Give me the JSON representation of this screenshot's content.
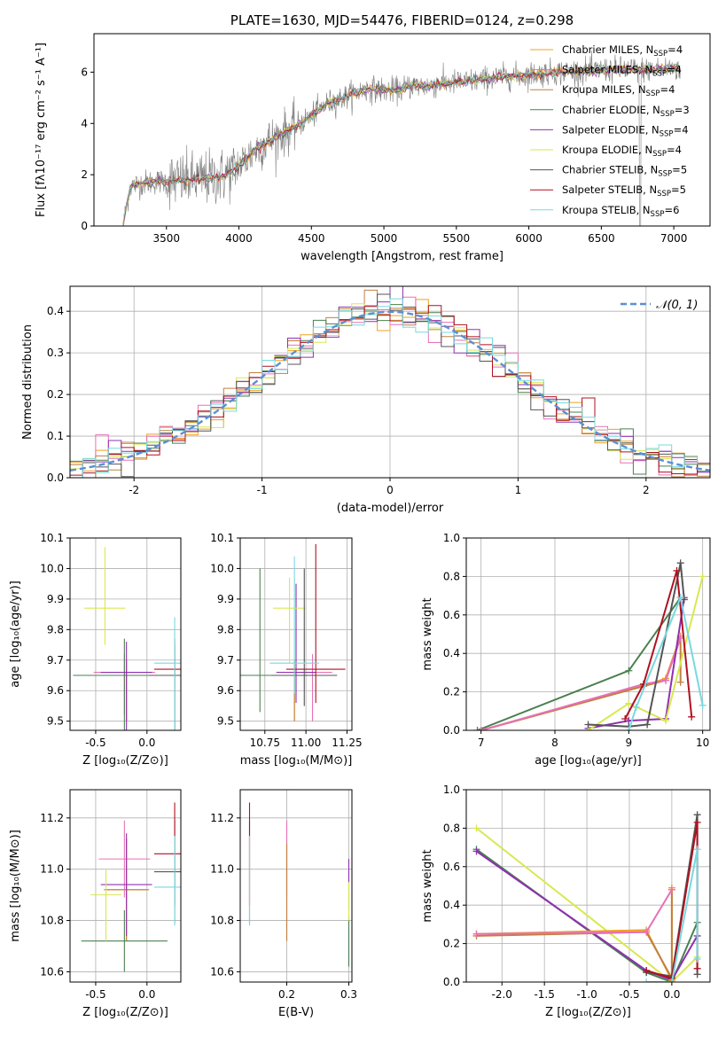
{
  "colors": {
    "chabrier_miles": "#f0a020",
    "salpeter_miles": "#e870b8",
    "kroupa_miles": "#c08040",
    "chabrier_elodie": "#4a8050",
    "salpeter_elodie": "#9030b0",
    "kroupa_elodie": "#d8e850",
    "chabrier_stelib": "#555555",
    "salpeter_stelib": "#b01020",
    "kroupa_stelib": "#78d8e0",
    "normal": "#5b8fd6",
    "mean_spectrum": "#7f7f7f"
  },
  "chart_data": [
    {
      "id": "spectrum",
      "type": "line",
      "title": "PLATE=1630, MJD=54476, FIBERID=0124, z=0.298",
      "xlabel": "wavelength [Angstrom, rest frame]",
      "ylabel": "Flux [fλ10⁻¹⁷ erg cm⁻² s⁻¹ A⁻¹]",
      "xlim": [
        3000,
        7250
      ],
      "ylim": [
        0,
        7.5
      ],
      "xticks": [
        3500,
        4000,
        4500,
        5000,
        5500,
        6000,
        6500,
        7000
      ],
      "yticks": [
        0,
        2,
        4,
        6
      ],
      "grid": false,
      "legend_position": "top-right",
      "continuum": {
        "x": [
          3200,
          3250,
          3350,
          3500,
          3700,
          3900,
          4000,
          4100,
          4200,
          4300,
          4400,
          4500,
          4600,
          4700,
          4800,
          4900,
          5000,
          5100,
          5200,
          5300,
          5400,
          5500,
          5600,
          5800,
          6000,
          6200,
          6400,
          6600,
          6800,
          7000,
          7050
        ],
        "y": [
          0,
          1.55,
          1.7,
          1.75,
          1.8,
          1.95,
          2.35,
          2.9,
          3.3,
          3.6,
          3.9,
          4.3,
          4.75,
          4.95,
          5.2,
          5.35,
          5.3,
          5.3,
          5.5,
          5.45,
          5.55,
          5.6,
          5.65,
          5.8,
          5.9,
          6.0,
          6.05,
          6.1,
          6.1,
          6.15,
          6.1
        ]
      },
      "series": [
        {
          "name": "Chabrier MILES, N",
          "sub": "SSP",
          "n": "4",
          "color_key": "chabrier_miles"
        },
        {
          "name": "Salpeter MILES, N",
          "sub": "SSP",
          "n": "4",
          "color_key": "salpeter_miles"
        },
        {
          "name": "Kroupa MILES, N",
          "sub": "SSP",
          "n": "4",
          "color_key": "kroupa_miles"
        },
        {
          "name": "Chabrier ELODIE, N",
          "sub": "SSP",
          "n": "3",
          "color_key": "chabrier_elodie"
        },
        {
          "name": "Salpeter ELODIE, N",
          "sub": "SSP",
          "n": "4",
          "color_key": "salpeter_elodie"
        },
        {
          "name": "Kroupa ELODIE, N",
          "sub": "SSP",
          "n": "4",
          "color_key": "kroupa_elodie"
        },
        {
          "name": "Chabrier STELIB, N",
          "sub": "SSP",
          "n": "5",
          "color_key": "chabrier_stelib"
        },
        {
          "name": "Salpeter STELIB, N",
          "sub": "SSP",
          "n": "5",
          "color_key": "salpeter_stelib"
        },
        {
          "name": "Kroupa STELIB, N",
          "sub": "SSP",
          "n": "6",
          "color_key": "kroupa_stelib"
        }
      ]
    },
    {
      "id": "residuals",
      "type": "histogram",
      "xlabel": "(data-model)/error",
      "ylabel": "Normed distribution",
      "xlim": [
        -2.5,
        2.5
      ],
      "ylim": [
        0,
        0.46
      ],
      "xticks": [
        -2,
        -1,
        0,
        1,
        2
      ],
      "yticks": [
        0.0,
        0.1,
        0.2,
        0.3,
        0.4
      ],
      "grid": true,
      "bin_width": 0.1,
      "bin_start": -2.5,
      "reference_curve": {
        "name": "𝒩(0, 1)",
        "style": "dashed",
        "legend_position": "top-right"
      }
    },
    {
      "id": "age_vs_Z",
      "type": "errorbar",
      "xlabel": "Z [log₁₀(Z/Z⊙)]",
      "ylabel": "age  [log₁₀(age/yr)]",
      "xlim": [
        -0.75,
        0.33
      ],
      "ylim": [
        9.47,
        10.1
      ],
      "xticks": [
        -0.5,
        0.0
      ],
      "yticks": [
        9.5,
        9.6,
        9.7,
        9.8,
        9.9,
        10.0,
        10.1
      ],
      "grid": true,
      "points": [
        {
          "color_key": "chabrier_miles",
          "x": -0.2,
          "xerr": 0.2,
          "y": 9.65,
          "yerr": [
            0.15,
            0.05
          ]
        },
        {
          "color_key": "salpeter_miles",
          "x": -0.22,
          "xerr": 0.3,
          "y": 9.66,
          "yerr": [
            0.14,
            0.06
          ]
        },
        {
          "color_key": "kroupa_miles",
          "x": -0.2,
          "xerr": 0.22,
          "y": 9.65,
          "yerr": [
            0.15,
            0.05
          ]
        },
        {
          "color_key": "chabrier_elodie",
          "x": -0.22,
          "xerr": 0.5,
          "y": 9.65,
          "yerr": [
            0.35,
            0.12
          ]
        },
        {
          "color_key": "salpeter_elodie",
          "x": -0.2,
          "xerr": 0.25,
          "y": 9.66,
          "yerr": [
            0.29,
            0.1
          ]
        },
        {
          "color_key": "kroupa_elodie",
          "x": -0.41,
          "xerr": 0.2,
          "y": 9.87,
          "yerr": [
            0.12,
            0.2
          ]
        },
        {
          "color_key": "chabrier_stelib",
          "x": 0.27,
          "xerr": 0.25,
          "y": 9.65,
          "yerr": [
            0.42,
            0.1
          ]
        },
        {
          "color_key": "salpeter_stelib",
          "x": 0.27,
          "xerr": 0.2,
          "y": 9.67,
          "yerr": [
            0.39,
            0.1
          ]
        },
        {
          "color_key": "kroupa_stelib",
          "x": 0.27,
          "xerr": 0.2,
          "y": 9.69,
          "yerr": [
            0.37,
            0.15
          ]
        }
      ]
    },
    {
      "id": "age_vs_mass",
      "type": "errorbar",
      "xlabel": "mass [log₁₀(M/M⊙)]",
      "ylabel": "",
      "xlim": [
        10.6,
        11.28
      ],
      "ylim": [
        9.47,
        10.1
      ],
      "xticks": [
        10.75,
        11.0,
        11.25
      ],
      "yticks": [
        9.5,
        9.6,
        9.7,
        9.8,
        9.9,
        10.0,
        10.1
      ],
      "grid": true,
      "points": [
        {
          "color_key": "chabrier_miles",
          "x": 10.93,
          "xerr": 0.15,
          "y": 9.65,
          "yerr": [
            0.15,
            0.05
          ]
        },
        {
          "color_key": "salpeter_miles",
          "x": 11.04,
          "xerr": 0.12,
          "y": 9.66,
          "yerr": [
            0.16,
            0.06
          ]
        },
        {
          "color_key": "kroupa_miles",
          "x": 10.93,
          "xerr": 0.15,
          "y": 9.65,
          "yerr": [
            0.15,
            0.05
          ]
        },
        {
          "color_key": "chabrier_elodie",
          "x": 10.72,
          "xerr": 0.12,
          "y": 9.65,
          "yerr": [
            0.12,
            0.35
          ]
        },
        {
          "color_key": "salpeter_elodie",
          "x": 10.94,
          "xerr": 0.12,
          "y": 9.66,
          "yerr": [
            0.1,
            0.29
          ]
        },
        {
          "color_key": "kroupa_elodie",
          "x": 10.9,
          "xerr": 0.1,
          "y": 9.87,
          "yerr": [
            0.18,
            0.1
          ]
        },
        {
          "color_key": "chabrier_stelib",
          "x": 10.99,
          "xerr": 0.2,
          "y": 9.65,
          "yerr": [
            0.1,
            0.35
          ]
        },
        {
          "color_key": "salpeter_stelib",
          "x": 11.06,
          "xerr": 0.18,
          "y": 9.67,
          "yerr": [
            0.11,
            0.41
          ]
        },
        {
          "color_key": "kroupa_stelib",
          "x": 10.93,
          "xerr": 0.15,
          "y": 9.69,
          "yerr": [
            0.1,
            0.35
          ]
        }
      ]
    },
    {
      "id": "massweight_vs_age",
      "type": "line",
      "xlabel": "age  [log₁₀(age/yr)]",
      "ylabel": "mass weight",
      "xlim": [
        6.8,
        10.1
      ],
      "ylim": [
        0,
        1.0
      ],
      "xticks": [
        7,
        8,
        9,
        10
      ],
      "yticks": [
        0.0,
        0.2,
        0.4,
        0.6,
        0.8,
        1.0
      ],
      "grid": true,
      "series": [
        {
          "color_key": "chabrier_elodie",
          "x": [
            6.95,
            9.0,
            9.7
          ],
          "y": [
            0.0,
            0.31,
            0.69
          ]
        },
        {
          "color_key": "chabrier_miles",
          "x": [
            7.0,
            9.2,
            9.5,
            9.7
          ],
          "y": [
            0.0,
            0.23,
            0.27,
            0.49
          ]
        },
        {
          "color_key": "kroupa_miles",
          "x": [
            7.0,
            9.2,
            9.5,
            9.7,
            9.7
          ],
          "y": [
            0.0,
            0.23,
            0.26,
            0.48,
            0.25
          ]
        },
        {
          "color_key": "salpeter_miles",
          "x": [
            7.0,
            9.2,
            9.5,
            9.7
          ],
          "y": [
            0.0,
            0.24,
            0.26,
            0.48
          ]
        },
        {
          "color_key": "salpeter_elodie",
          "x": [
            8.45,
            9.0,
            9.5,
            9.75
          ],
          "y": [
            0.01,
            0.05,
            0.06,
            0.69
          ]
        },
        {
          "color_key": "kroupa_elodie",
          "x": [
            8.45,
            9.0,
            9.5,
            10.0
          ],
          "y": [
            0.0,
            0.14,
            0.05,
            0.8
          ]
        },
        {
          "color_key": "chabrier_stelib",
          "x": [
            8.45,
            9.0,
            9.25,
            9.7,
            9.75
          ],
          "y": [
            0.03,
            0.02,
            0.03,
            0.87,
            0.68
          ]
        },
        {
          "color_key": "salpeter_stelib",
          "x": [
            8.95,
            9.2,
            9.65,
            9.85
          ],
          "y": [
            0.06,
            0.24,
            0.83,
            0.07
          ]
        },
        {
          "color_key": "kroupa_stelib",
          "x": [
            9.0,
            9.1,
            9.7,
            10.0
          ],
          "y": [
            0.0,
            0.12,
            0.69,
            0.13
          ]
        }
      ]
    },
    {
      "id": "mass_vs_Z",
      "type": "errorbar",
      "xlabel": "Z [log₁₀(Z/Z⊙)]",
      "ylabel": "mass [log₁₀(M/M⊙)]",
      "xlim": [
        -0.75,
        0.33
      ],
      "ylim": [
        10.56,
        11.31
      ],
      "xticks": [
        -0.5,
        0.0
      ],
      "yticks": [
        10.6,
        10.8,
        11.0,
        11.2
      ],
      "grid": true,
      "points": [
        {
          "color_key": "chabrier_miles",
          "x": -0.2,
          "xerr": 0.2,
          "y": 10.92,
          "yerr": [
            0.2,
            0.2
          ]
        },
        {
          "color_key": "salpeter_miles",
          "x": -0.22,
          "xerr": 0.25,
          "y": 11.04,
          "yerr": [
            0.15,
            0.15
          ]
        },
        {
          "color_key": "kroupa_miles",
          "x": -0.2,
          "xerr": 0.22,
          "y": 10.92,
          "yerr": [
            0.2,
            0.2
          ]
        },
        {
          "color_key": "chabrier_elodie",
          "x": -0.22,
          "xerr": 0.42,
          "y": 10.72,
          "yerr": [
            0.12,
            0.12
          ]
        },
        {
          "color_key": "salpeter_elodie",
          "x": -0.2,
          "xerr": 0.25,
          "y": 10.94,
          "yerr": [
            0.2,
            0.2
          ]
        },
        {
          "color_key": "kroupa_elodie",
          "x": -0.4,
          "xerr": 0.15,
          "y": 10.9,
          "yerr": [
            0.18,
            0.1
          ]
        },
        {
          "color_key": "chabrier_stelib",
          "x": 0.27,
          "xerr": 0.2,
          "y": 10.99,
          "yerr": [
            0.2,
            0.2
          ]
        },
        {
          "color_key": "salpeter_stelib",
          "x": 0.27,
          "xerr": 0.2,
          "y": 11.06,
          "yerr": [
            0.2,
            0.2
          ]
        },
        {
          "color_key": "kroupa_stelib",
          "x": 0.27,
          "xerr": 0.2,
          "y": 10.93,
          "yerr": [
            0.15,
            0.2
          ]
        }
      ]
    },
    {
      "id": "mass_vs_EBV",
      "type": "errorbar",
      "xlabel": "E(B-V)",
      "ylabel": "",
      "xlim": [
        0.125,
        0.305
      ],
      "ylim": [
        10.56,
        11.31
      ],
      "xticks": [
        0.2,
        0.3
      ],
      "yticks": [
        10.6,
        10.8,
        11.0,
        11.2
      ],
      "grid": true,
      "points": [
        {
          "color_key": "chabrier_miles",
          "x": 0.2,
          "y": 10.92,
          "yerr": [
            0.2,
            0.2
          ]
        },
        {
          "color_key": "salpeter_miles",
          "x": 0.2,
          "y": 11.04,
          "yerr": [
            0.15,
            0.15
          ]
        },
        {
          "color_key": "kroupa_miles",
          "x": 0.2,
          "y": 10.92,
          "yerr": [
            0.2,
            0.18
          ]
        },
        {
          "color_key": "chabrier_elodie",
          "x": 0.3,
          "y": 10.72,
          "yerr": [
            0.1,
            0.1
          ]
        },
        {
          "color_key": "salpeter_elodie",
          "x": 0.3,
          "y": 10.94,
          "yerr": [
            0.1,
            0.1
          ]
        },
        {
          "color_key": "kroupa_elodie",
          "x": 0.3,
          "y": 10.9,
          "yerr": [
            0.1,
            0.05
          ]
        },
        {
          "color_key": "chabrier_stelib",
          "x": 0.14,
          "y": 10.99,
          "yerr": [
            0.2,
            0.2
          ]
        },
        {
          "color_key": "salpeter_stelib",
          "x": 0.14,
          "y": 11.06,
          "yerr": [
            0.2,
            0.2
          ]
        },
        {
          "color_key": "kroupa_stelib",
          "x": 0.14,
          "y": 10.93,
          "yerr": [
            0.15,
            0.2
          ]
        }
      ]
    },
    {
      "id": "massweight_vs_Z",
      "type": "line",
      "xlabel": "Z [log₁₀(Z/Z⊙)]",
      "ylabel": "mass weight",
      "xlim": [
        -2.42,
        0.45
      ],
      "ylim": [
        0,
        1.0
      ],
      "xticks": [
        -2.0,
        -1.5,
        -1.0,
        -0.5,
        0.0
      ],
      "yticks": [
        0.0,
        0.2,
        0.4,
        0.6,
        0.8,
        1.0
      ],
      "grid": true,
      "series": [
        {
          "color_key": "kroupa_elodie",
          "x": [
            -2.3,
            0.0,
            0.3
          ],
          "y": [
            0.8,
            0.0,
            0.13
          ]
        },
        {
          "color_key": "chabrier_elodie",
          "x": [
            -2.3,
            -0.3,
            0.0,
            0.3
          ],
          "y": [
            0.69,
            0.05,
            0.0,
            0.31
          ]
        },
        {
          "color_key": "salpeter_elodie",
          "x": [
            -2.3,
            -0.3,
            0.0,
            0.3
          ],
          "y": [
            0.68,
            0.06,
            0.01,
            0.24
          ]
        },
        {
          "color_key": "chabrier_miles",
          "x": [
            -2.3,
            -0.3,
            0.0,
            0.0
          ],
          "y": [
            0.25,
            0.27,
            0.01,
            0.49
          ]
        },
        {
          "color_key": "kroupa_miles",
          "x": [
            -2.3,
            -0.3,
            0.0,
            0.0
          ],
          "y": [
            0.24,
            0.26,
            0.02,
            0.48
          ]
        },
        {
          "color_key": "salpeter_miles",
          "x": [
            -2.3,
            -0.3,
            0.0
          ],
          "y": [
            0.25,
            0.26,
            0.48
          ]
        },
        {
          "color_key": "chabrier_stelib",
          "x": [
            -0.3,
            0.0,
            0.3,
            0.3
          ],
          "y": [
            0.05,
            0.03,
            0.87,
            0.04
          ]
        },
        {
          "color_key": "salpeter_stelib",
          "x": [
            -0.3,
            0.0,
            0.3,
            0.3
          ],
          "y": [
            0.06,
            0.02,
            0.83,
            0.07
          ]
        },
        {
          "color_key": "kroupa_stelib",
          "x": [
            -0.3,
            0.0,
            0.3,
            0.3
          ],
          "y": [
            0.0,
            0.0,
            0.69,
            0.12
          ]
        }
      ]
    }
  ]
}
